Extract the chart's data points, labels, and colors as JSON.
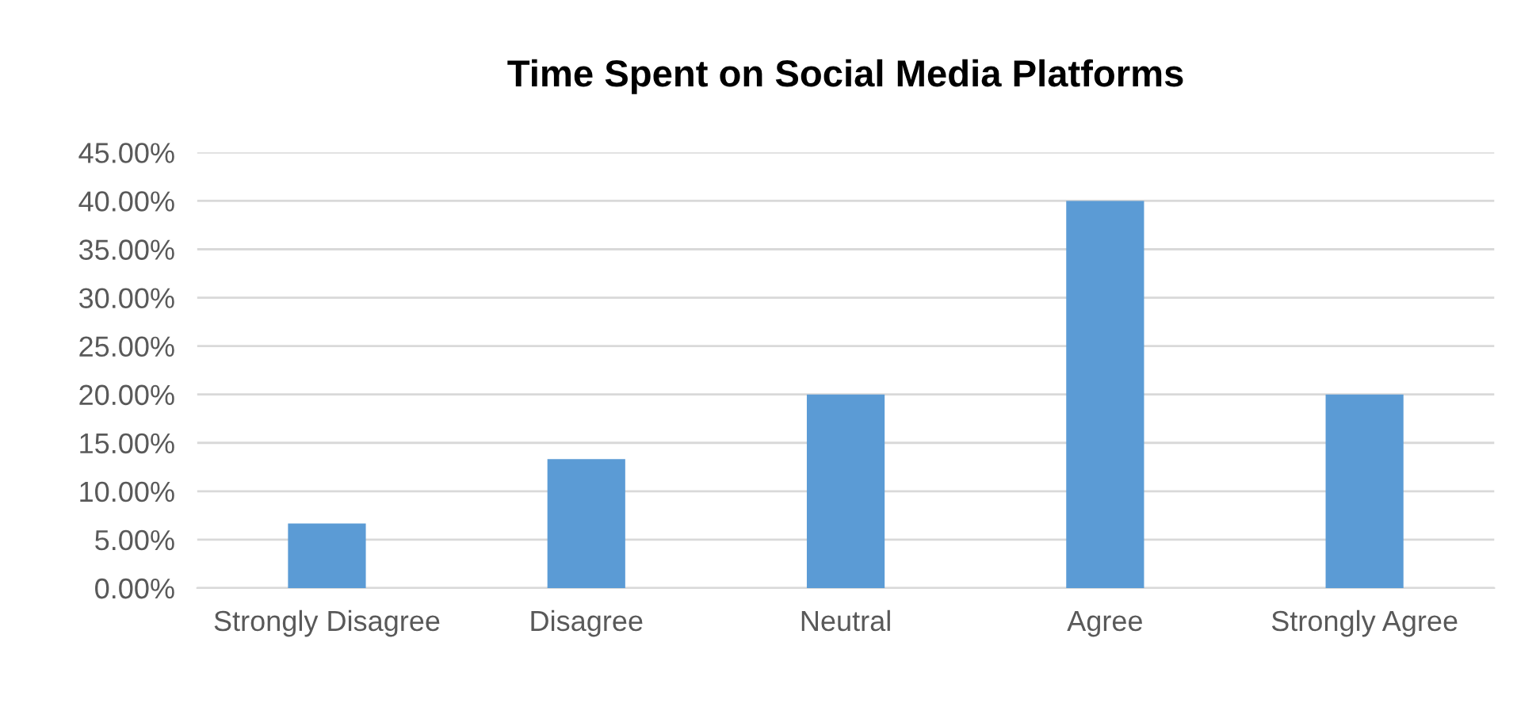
{
  "chart_data": {
    "type": "bar",
    "title": "Time Spent on Social Media Platforms",
    "categories": [
      "Strongly Disagree",
      "Disagree",
      "Neutral",
      "Agree",
      "Strongly Agree"
    ],
    "values": [
      6.67,
      13.33,
      20,
      40,
      20
    ],
    "color": "#5b9bd5",
    "ylim": [
      0,
      45
    ],
    "yticks": [
      {
        "value": 0,
        "label": "0.00%"
      },
      {
        "value": 5,
        "label": "5.00%"
      },
      {
        "value": 10,
        "label": "10.00%"
      },
      {
        "value": 15,
        "label": "15.00%"
      },
      {
        "value": 20,
        "label": "20.00%"
      },
      {
        "value": 25,
        "label": "25.00%"
      },
      {
        "value": 30,
        "label": "30.00%"
      },
      {
        "value": 35,
        "label": "35.00%"
      },
      {
        "value": 40,
        "label": "40.00%"
      },
      {
        "value": 45,
        "label": "45.00%"
      }
    ],
    "grid": "y",
    "legend": false
  }
}
